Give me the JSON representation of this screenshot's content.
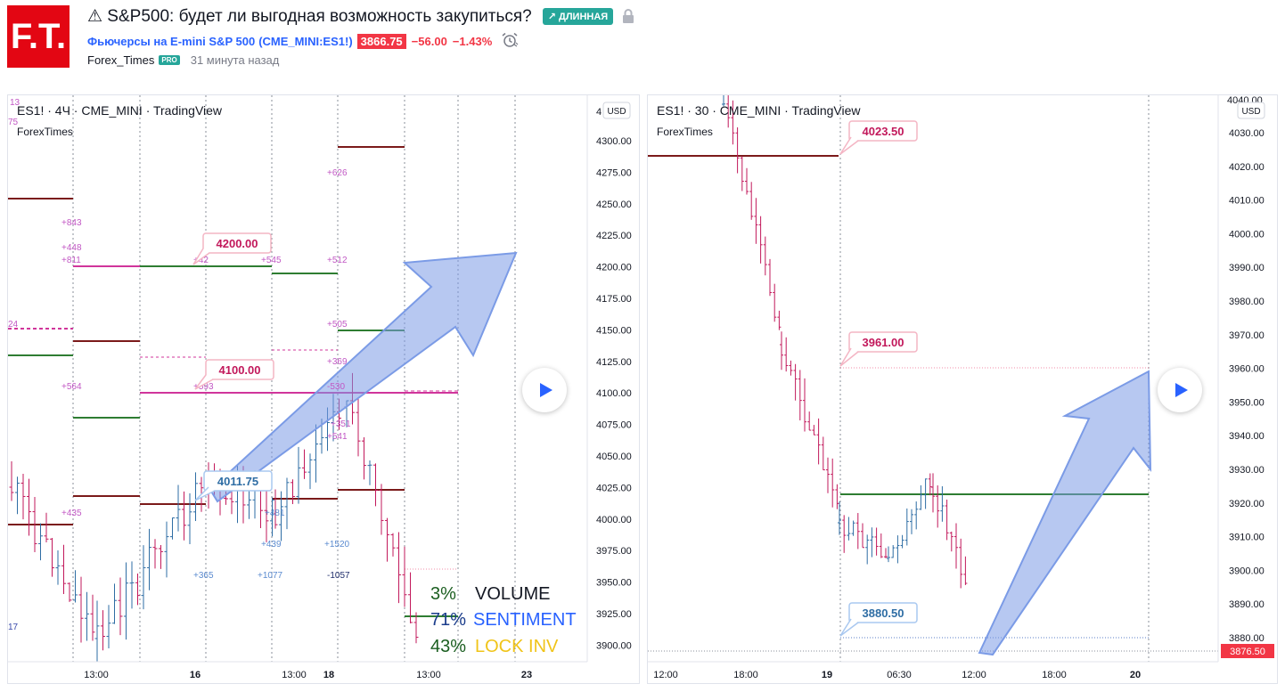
{
  "header": {
    "logo_text": "F.T.",
    "title": "⚠ S&P500: будет ли выгодная возможность закупиться?",
    "badge_label": "↗ ДЛИННАЯ",
    "symbol_name": "Фьючерсы на E-mini S&P 500",
    "symbol_open": "(",
    "symbol_code": "CME_MINI:ES1!",
    "symbol_close": ")",
    "price": "3866.75",
    "change": "−56.00",
    "change_pct": "−1.43%",
    "author": "Forex_Times",
    "author_badge": "PRO",
    "time_ago": "31 минута назад"
  },
  "left_chart": {
    "legend_title": "ES1! · 4Ч · CME_MINI · TradingView",
    "legend_sub": "ForexTimes",
    "currency": "USD",
    "price_axis": [
      "4300.00",
      "4275.00",
      "4250.00",
      "4225.00",
      "4200.00",
      "4175.00",
      "4150.00",
      "4125.00",
      "4100.00",
      "4075.00",
      "4050.00",
      "4025.00",
      "4000.00",
      "3975.00",
      "3950.00",
      "3925.00",
      "3900.00"
    ],
    "axis_top_clip": "4",
    "time_axis": [
      "13:00",
      "16",
      "13:00",
      "18",
      "13:00",
      "23"
    ],
    "price_labels": [
      "4200.00",
      "4100.00",
      "4011.75"
    ],
    "level_labels": [
      {
        "t": "+843",
        "c": "#c157c4"
      },
      {
        "t": "+448",
        "c": "#c157c4"
      },
      {
        "t": "+811",
        "c": "#c157c4"
      },
      {
        "t": "+42",
        "c": "#c157c4"
      },
      {
        "t": "+545",
        "c": "#c157c4"
      },
      {
        "t": "+512",
        "c": "#c157c4"
      },
      {
        "t": "+626",
        "c": "#c157c4"
      },
      {
        "t": "+505",
        "c": "#c157c4"
      },
      {
        "t": "+369",
        "c": "#c157c4"
      },
      {
        "t": "+564",
        "c": "#c157c4"
      },
      {
        "t": "+593",
        "c": "#c157c4"
      },
      {
        "t": "-530",
        "c": "#c157c4"
      },
      {
        "t": "+351",
        "c": "#c157c4"
      },
      {
        "t": "+541",
        "c": "#c157c4"
      },
      {
        "t": "+435",
        "c": "#c157c4"
      },
      {
        "t": "+481",
        "c": "#5b8bd0"
      },
      {
        "t": "+439",
        "c": "#5b8bd0"
      },
      {
        "t": "+1520",
        "c": "#5b8bd0"
      },
      {
        "t": "+365",
        "c": "#5b8bd0"
      },
      {
        "t": "+1077",
        "c": "#5b8bd0"
      },
      {
        "t": "-1057",
        "c": "#1f2d6b"
      }
    ],
    "edge_labels": [
      "13",
      "75",
      "24",
      "17"
    ],
    "stats": [
      {
        "pct": "3%",
        "label": "VOLUME",
        "label_color": "#131722"
      },
      {
        "pct": "71%",
        "label": "SENTIMENT",
        "label_color": "#2962ff"
      },
      {
        "pct": "43%",
        "label": "LOCK INV",
        "label_color": "#f0c419"
      }
    ]
  },
  "right_chart": {
    "legend_title": "ES1! · 30 · CME_MINI · TradingView",
    "legend_sub": "ForexTimes",
    "currency": "USD",
    "price_axis": [
      "4030.00",
      "4020.00",
      "4010.00",
      "4000.00",
      "3990.00",
      "3980.00",
      "3970.00",
      "3960.00",
      "3950.00",
      "3940.00",
      "3930.00",
      "3920.00",
      "3910.00",
      "3900.00",
      "3890.00",
      "3880.00"
    ],
    "axis_top_clip": "4040.00",
    "time_axis": [
      "12:00",
      "18:00",
      "19",
      "06:30",
      "12:00",
      "18:00",
      "20"
    ],
    "price_labels": [
      "4023.50",
      "3961.00",
      "3880.50"
    ],
    "last_price": "3876.50"
  },
  "colors": {
    "bull": "#2e6da4",
    "bear": "#c2185b",
    "accent_red": "#f23645",
    "accent_green": "#26a69a",
    "level_dark_red": "#7b1a1a",
    "level_green": "#2e7d32",
    "level_magenta": "#d0359b",
    "arrow_fill": "#7b9be6"
  }
}
